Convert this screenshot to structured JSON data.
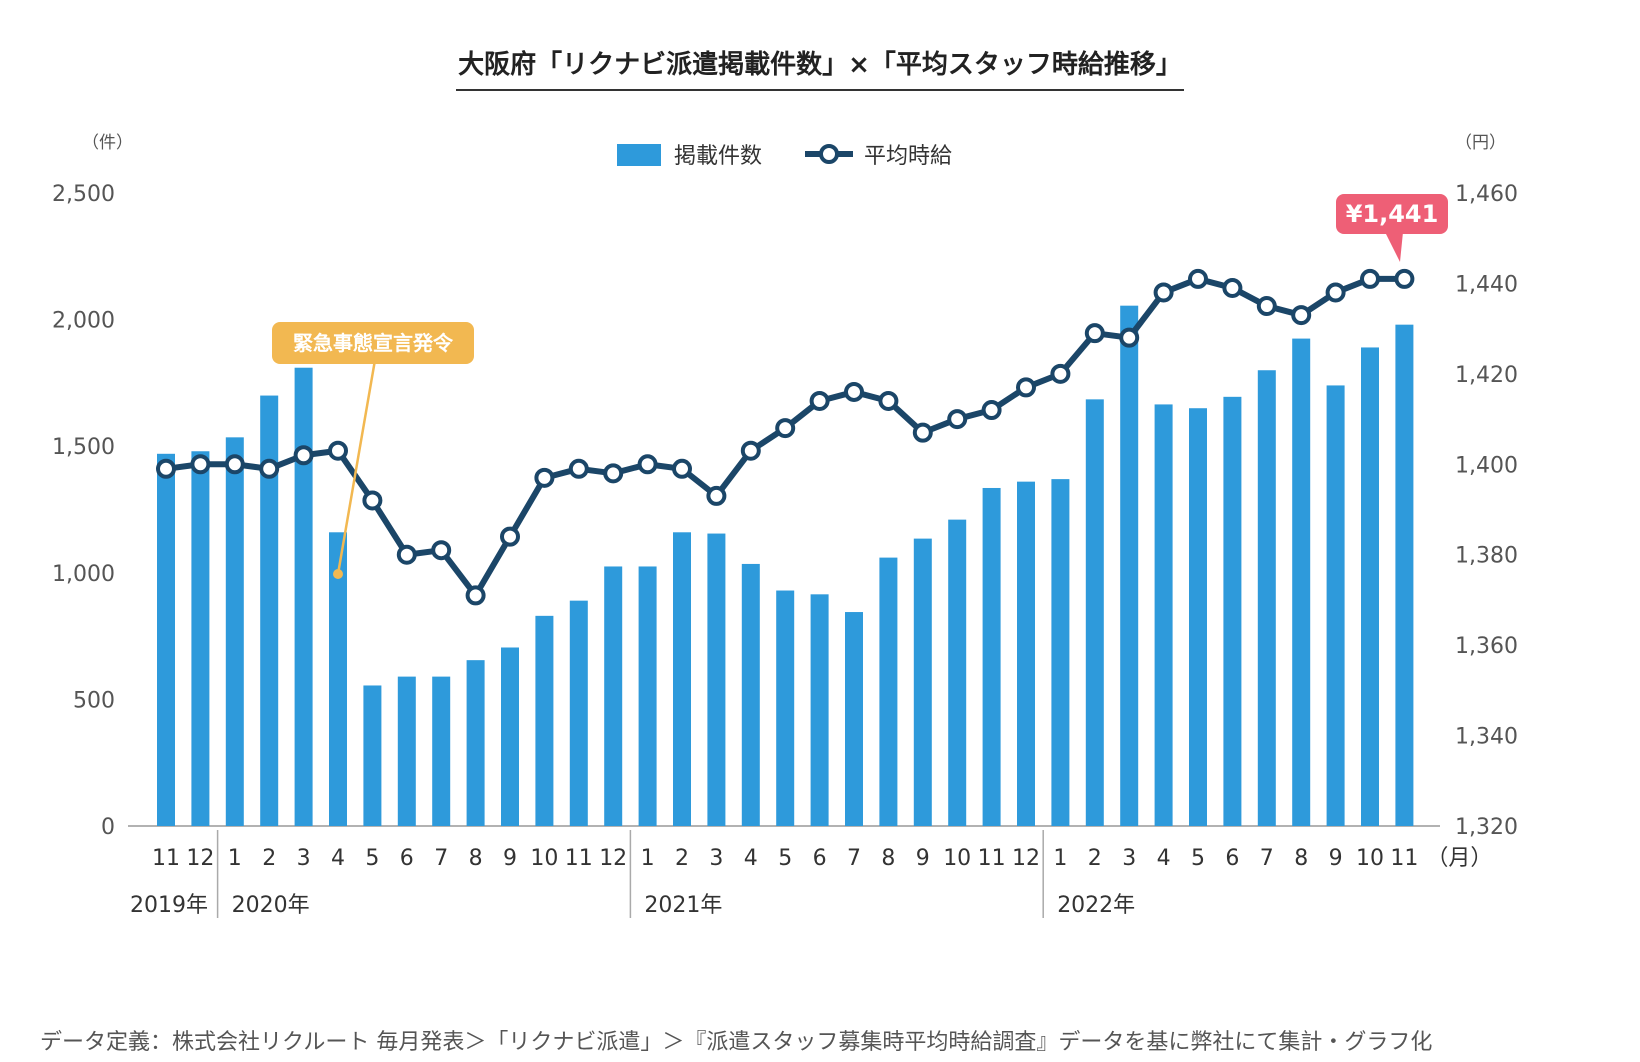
{
  "title": "大阪府「リクナビ派遣掲載件数」×「平均スタッフ時給推移」",
  "footnote": "データ定義：株式会社リクルート 毎月発表＞「リクナビ派遣」＞『派遣スタッフ募集時平均時給調査』データを基に弊社にて集計・グラフ化",
  "colors": {
    "bar": "#2e9adb",
    "line": "#1b4668",
    "emergency": "#f2b851",
    "highlight": "#ee5f76"
  },
  "chart_data": {
    "type": "bar",
    "left_axis": {
      "unit": "（件）",
      "ylim": [
        0,
        2500
      ],
      "ticks": [
        "0",
        "500",
        "1,000",
        "1,500",
        "2,000",
        "2,500"
      ],
      "tick_values": [
        0,
        500,
        1000,
        1500,
        2000,
        2500
      ]
    },
    "right_axis": {
      "unit": "（円）",
      "ylim": [
        1320,
        1460
      ],
      "ticks": [
        "1,320",
        "1,340",
        "1,360",
        "1,380",
        "1,400",
        "1,420",
        "1,440",
        "1,460"
      ],
      "tick_values": [
        1320,
        1340,
        1360,
        1380,
        1400,
        1420,
        1440,
        1460
      ]
    },
    "x_unit": "（月）",
    "categories": [
      "11",
      "12",
      "1",
      "2",
      "3",
      "4",
      "5",
      "6",
      "7",
      "8",
      "9",
      "10",
      "11",
      "12",
      "1",
      "2",
      "3",
      "4",
      "5",
      "6",
      "7",
      "8",
      "9",
      "10",
      "11",
      "12",
      "1",
      "2",
      "3",
      "4",
      "5",
      "6",
      "7",
      "8",
      "9",
      "10",
      "11"
    ],
    "years": [
      {
        "label": "2019年",
        "start_index": 0
      },
      {
        "label": "2020年",
        "start_index": 2
      },
      {
        "label": "2021年",
        "start_index": 14
      },
      {
        "label": "2022年",
        "start_index": 26
      }
    ],
    "series": [
      {
        "name": "掲載件数",
        "type": "bar",
        "axis": "left",
        "values": [
          1470,
          1480,
          1535,
          1700,
          1810,
          1160,
          555,
          590,
          590,
          655,
          705,
          830,
          890,
          1025,
          1025,
          1160,
          1155,
          1035,
          930,
          915,
          845,
          1060,
          1135,
          1210,
          1335,
          1360,
          1370,
          1685,
          2055,
          1665,
          1650,
          1695,
          1800,
          1925,
          1740,
          1890,
          1980
        ]
      },
      {
        "name": "平均時給",
        "type": "line",
        "axis": "right",
        "values": [
          1399,
          1400,
          1400,
          1399,
          1402,
          1403,
          1392,
          1380,
          1381,
          1371,
          1384,
          1397,
          1399,
          1398,
          1400,
          1399,
          1393,
          1403,
          1408,
          1414,
          1416,
          1414,
          1407,
          1410,
          1412,
          1417,
          1420,
          1429,
          1428,
          1438,
          1441,
          1439,
          1435,
          1433,
          1438,
          1441,
          1441
        ]
      }
    ],
    "annotations": [
      {
        "text": "緊急事態宣言発令",
        "index": 5
      },
      {
        "text": "¥1,441",
        "index": 36
      }
    ]
  }
}
